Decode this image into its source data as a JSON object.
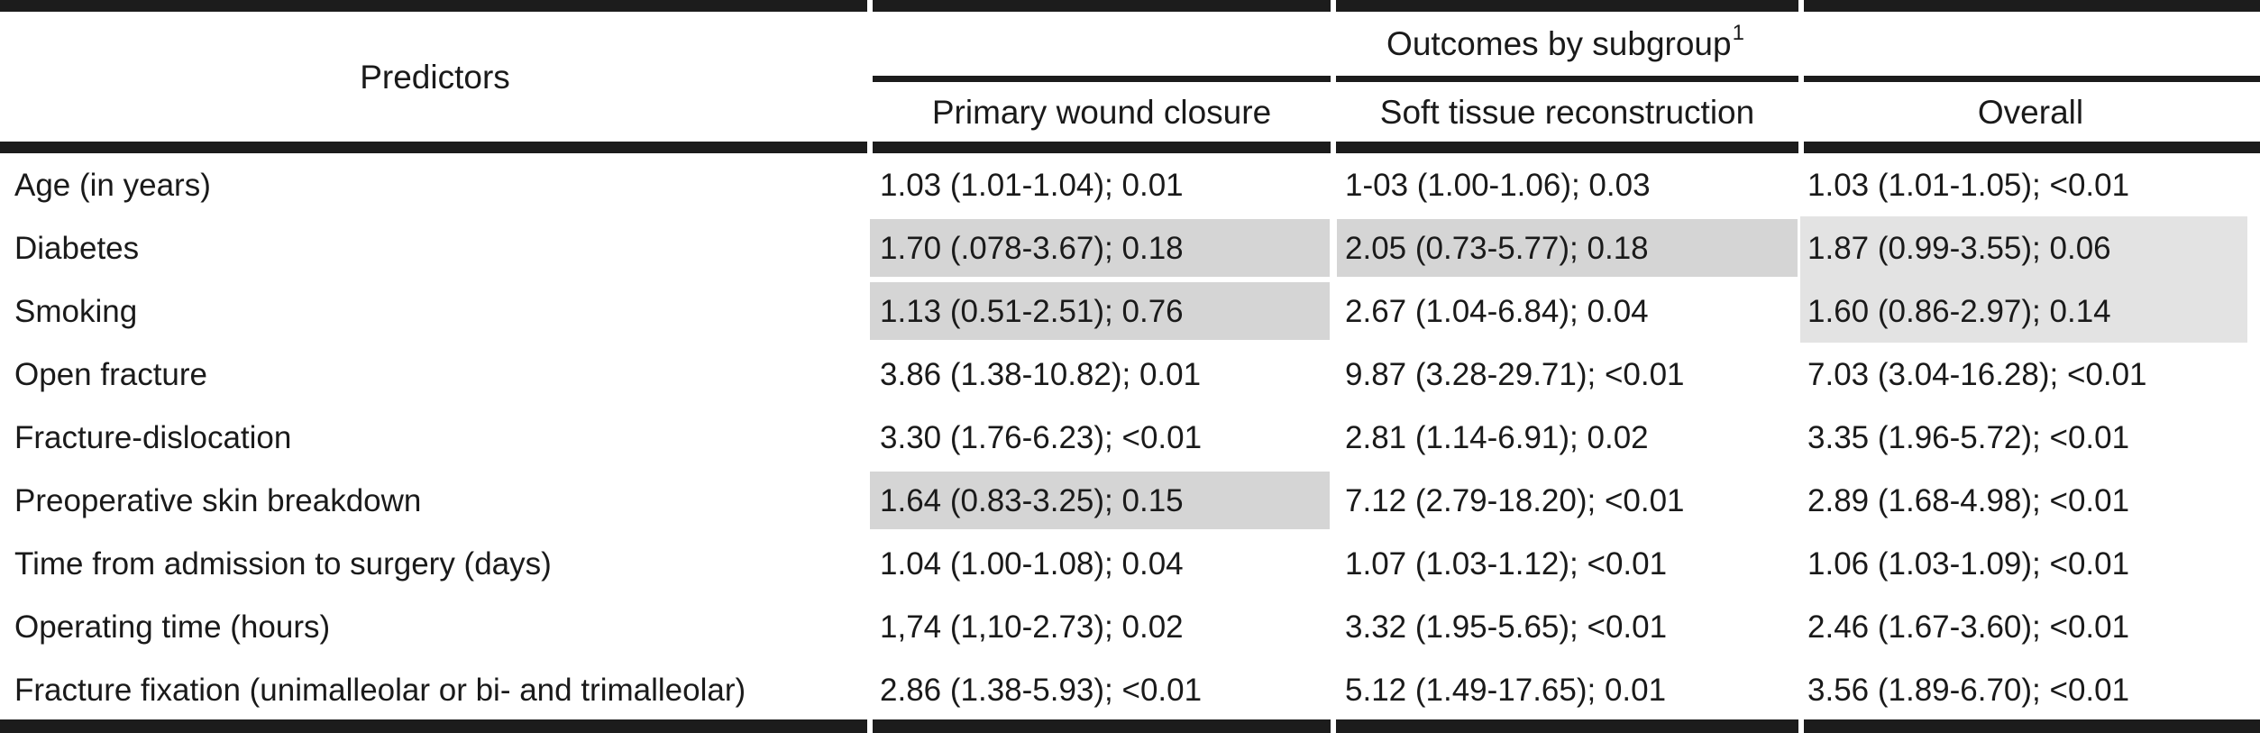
{
  "table": {
    "predictors_header": "Predictors",
    "outcomes_header": "Outcomes by subgroup",
    "outcomes_superscript": "1",
    "columns": [
      "Primary wound closure",
      "Soft tissue reconstruction",
      "Overall"
    ],
    "rows": [
      {
        "predictor": "Age (in years)",
        "values": [
          "1.03 (1.01-1.04); 0.01",
          "1-03 (1.00-1.06); 0.03",
          "1.03 (1.01-1.05); <0.01"
        ],
        "shading": [
          "none",
          "none",
          "none"
        ]
      },
      {
        "predictor": "Diabetes",
        "values": [
          "1.70 (.078-3.67); 0.18",
          "2.05 (0.73-5.77); 0.18",
          "1.87 (0.99-3.55); 0.06"
        ],
        "shading": [
          "gray",
          "gray",
          "light"
        ]
      },
      {
        "predictor": "Smoking",
        "values": [
          "1.13 (0.51-2.51); 0.76",
          "2.67 (1.04-6.84); 0.04",
          "1.60 (0.86-2.97); 0.14"
        ],
        "shading": [
          "gray",
          "none",
          "light"
        ]
      },
      {
        "predictor": "Open fracture",
        "values": [
          "3.86 (1.38-10.82); 0.01",
          "9.87 (3.28-29.71); <0.01",
          "7.03 (3.04-16.28); <0.01"
        ],
        "shading": [
          "none",
          "none",
          "none"
        ]
      },
      {
        "predictor": "Fracture-dislocation",
        "values": [
          "3.30 (1.76-6.23); <0.01",
          "2.81 (1.14-6.91); 0.02",
          "3.35 (1.96-5.72); <0.01"
        ],
        "shading": [
          "none",
          "none",
          "none"
        ]
      },
      {
        "predictor": "Preoperative skin breakdown",
        "values": [
          "1.64 (0.83-3.25); 0.15",
          "7.12 (2.79-18.20); <0.01",
          "2.89 (1.68-4.98); <0.01"
        ],
        "shading": [
          "gray",
          "none",
          "none"
        ]
      },
      {
        "predictor": "Time from admission to surgery (days)",
        "values": [
          "1.04 (1.00-1.08); 0.04",
          "1.07 (1.03-1.12); <0.01",
          "1.06 (1.03-1.09); <0.01"
        ],
        "shading": [
          "none",
          "none",
          "none"
        ]
      },
      {
        "predictor": "Operating time (hours)",
        "values": [
          "1,74 (1,10-2.73); 0.02",
          "3.32 (1.95-5.65); <0.01",
          "2.46 (1.67-3.60); <0.01"
        ],
        "shading": [
          "none",
          "none",
          "none"
        ]
      },
      {
        "predictor": "Fracture fixation (unimalleolar or bi- and trimalleolar)",
        "values": [
          "2.86 (1.38-5.93); <0.01",
          "5.12 (1.49-17.65); 0.01",
          "3.56 (1.89-6.70); <0.01"
        ],
        "shading": [
          "none",
          "none",
          "none"
        ]
      }
    ]
  },
  "colors": {
    "rule": "#1c1c1c",
    "text": "#1a1a1a",
    "shade_gray": "#d5d5d5",
    "shade_light": "#e3e3e3"
  }
}
